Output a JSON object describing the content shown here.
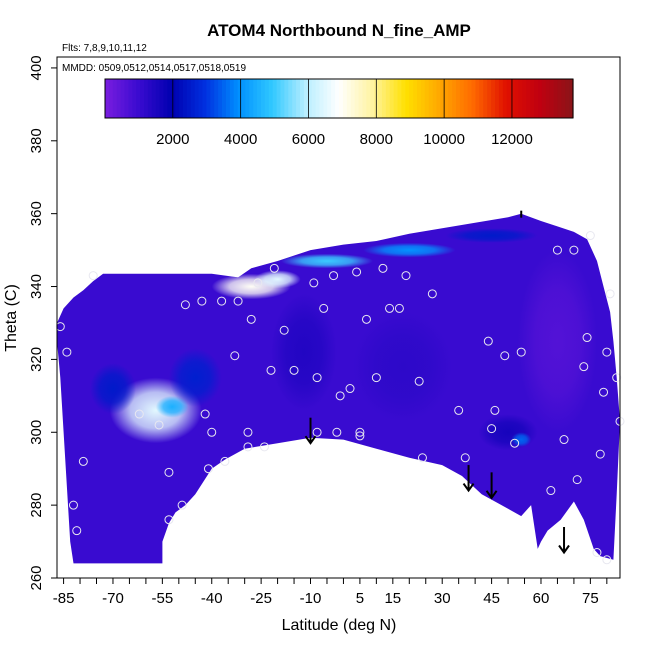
{
  "chart_data": {
    "type": "heatmap",
    "title": "ATOM4 Northbound N_fine_AMP",
    "subtitle": "Flts: 7,8,9,10,11,12",
    "annotation": "MMDD: 0509,0512,0514,0517,0518,0519",
    "xlabel": "Latitude (deg N)",
    "ylabel": "Theta (C)",
    "xlim": [
      -87,
      84
    ],
    "ylim": [
      260,
      403
    ],
    "x_ticks": [
      "-85",
      "-70",
      "-55",
      "-40",
      "-25",
      "-10",
      "5",
      "15",
      "30",
      "45",
      "60",
      "75"
    ],
    "x_tick_values": [
      -85,
      -70,
      -55,
      -40,
      -25,
      -10,
      5,
      15,
      30,
      45,
      60,
      75
    ],
    "y_ticks": [
      "260",
      "280",
      "300",
      "320",
      "340",
      "360",
      "380",
      "400"
    ],
    "y_tick_values": [
      260,
      280,
      300,
      320,
      340,
      360,
      380,
      400
    ],
    "colorbar": {
      "ticks": [
        "2000",
        "4000",
        "6000",
        "8000",
        "10000",
        "12000"
      ],
      "tick_values": [
        2000,
        4000,
        6000,
        8000,
        10000,
        12000
      ],
      "range": [
        0,
        13800
      ],
      "colors": [
        "#7a1de0",
        "#3a0bd0",
        "#0000b0",
        "#0030e0",
        "#0090ff",
        "#30c8ff",
        "#b8eeff",
        "#ffffff",
        "#fff3a0",
        "#ffe000",
        "#ffa800",
        "#ff6a00",
        "#e01000",
        "#c00010",
        "#8a1418"
      ]
    },
    "background_value": 1000,
    "blobs": [
      {
        "lat": -57,
        "theta": 306,
        "rx": 14,
        "ry": 9,
        "value": 6500
      },
      {
        "lat": -52,
        "theta": 307,
        "rx": 5,
        "ry": 3,
        "value": 4500
      },
      {
        "lat": -70,
        "theta": 312,
        "rx": 7,
        "ry": 7,
        "value": 2500
      },
      {
        "lat": -45,
        "theta": 315,
        "rx": 8,
        "ry": 8,
        "value": 2600
      },
      {
        "lat": -28,
        "theta": 340,
        "rx": 12,
        "ry": 3.5,
        "value": 7000
      },
      {
        "lat": -20,
        "theta": 342,
        "rx": 7,
        "ry": 2.5,
        "value": 6500
      },
      {
        "lat": -5,
        "theta": 347,
        "rx": 14,
        "ry": 2,
        "value": 5000
      },
      {
        "lat": 20,
        "theta": 350,
        "rx": 14,
        "ry": 2,
        "value": 4000
      },
      {
        "lat": 45,
        "theta": 354,
        "rx": 14,
        "ry": 2,
        "value": 2500
      },
      {
        "lat": -12,
        "theta": 322,
        "rx": 10,
        "ry": 16,
        "value": 1400
      },
      {
        "lat": 18,
        "theta": 318,
        "rx": 15,
        "ry": 15,
        "value": 1200
      },
      {
        "lat": 50,
        "theta": 300,
        "rx": 9,
        "ry": 5,
        "value": 1600
      },
      {
        "lat": 54,
        "theta": 298,
        "rx": 3,
        "ry": 2,
        "value": 3500
      },
      {
        "lat": 65,
        "theta": 325,
        "rx": 12,
        "ry": 25,
        "value": 600
      }
    ],
    "outline": [
      [
        -87,
        330
      ],
      [
        -85,
        334
      ],
      [
        -82,
        337
      ],
      [
        -79,
        339
      ],
      [
        -76,
        341.5
      ],
      [
        -73,
        343.5
      ],
      [
        -60,
        343.5
      ],
      [
        -50,
        343.5
      ],
      [
        -40,
        343.5
      ],
      [
        -32,
        342.5
      ],
      [
        -28,
        345
      ],
      [
        -20,
        347
      ],
      [
        -10,
        350
      ],
      [
        0,
        351.5
      ],
      [
        10,
        352.5
      ],
      [
        20,
        354.5
      ],
      [
        30,
        356
      ],
      [
        40,
        357.5
      ],
      [
        50,
        359
      ],
      [
        54,
        360
      ],
      [
        60,
        358
      ],
      [
        65,
        356.5
      ],
      [
        70,
        355
      ],
      [
        74,
        353
      ],
      [
        77,
        347
      ],
      [
        79,
        340
      ],
      [
        81,
        333
      ],
      [
        82,
        325
      ],
      [
        83,
        315
      ],
      [
        84,
        303
      ],
      [
        83,
        283
      ],
      [
        82,
        265
      ],
      [
        78,
        266
      ],
      [
        76,
        268
      ],
      [
        73,
        276
      ],
      [
        70,
        281
      ],
      [
        66,
        276
      ],
      [
        62,
        273
      ],
      [
        60,
        270
      ],
      [
        59,
        268
      ],
      [
        57,
        280
      ],
      [
        54,
        277
      ],
      [
        48,
        280
      ],
      [
        42,
        283
      ],
      [
        36,
        288
      ],
      [
        30,
        291
      ],
      [
        20,
        293
      ],
      [
        10,
        295.5
      ],
      [
        0,
        298
      ],
      [
        -10,
        298.5
      ],
      [
        -20,
        297
      ],
      [
        -30,
        295.5
      ],
      [
        -36,
        292.5
      ],
      [
        -40,
        290
      ],
      [
        -45,
        283
      ],
      [
        -48,
        280
      ],
      [
        -51,
        278
      ],
      [
        -53,
        275
      ],
      [
        -55,
        270
      ],
      [
        -55,
        264
      ],
      [
        -82,
        264
      ],
      [
        -83,
        270
      ],
      [
        -84,
        285
      ],
      [
        -85,
        300
      ],
      [
        -86,
        315
      ],
      [
        -87,
        325
      ]
    ],
    "flight_points": [
      [
        -86,
        329
      ],
      [
        -84,
        322
      ],
      [
        -82,
        280
      ],
      [
        -81,
        273
      ],
      [
        -79,
        292
      ],
      [
        -76,
        343
      ],
      [
        -62,
        305
      ],
      [
        -56,
        302
      ],
      [
        -53,
        289
      ],
      [
        -53,
        276
      ],
      [
        -49,
        280
      ],
      [
        -48,
        335
      ],
      [
        -43,
        336
      ],
      [
        -42,
        305
      ],
      [
        -41,
        290
      ],
      [
        -40,
        300
      ],
      [
        -37,
        336
      ],
      [
        -36,
        292
      ],
      [
        -33,
        321
      ],
      [
        -32,
        336
      ],
      [
        -29,
        300
      ],
      [
        -29,
        296
      ],
      [
        -28,
        331
      ],
      [
        -26,
        341
      ],
      [
        -24,
        296
      ],
      [
        -22,
        317
      ],
      [
        -21,
        345
      ],
      [
        -18,
        328
      ],
      [
        -15,
        317
      ],
      [
        -9,
        341
      ],
      [
        -8,
        315
      ],
      [
        -8,
        300
      ],
      [
        -6,
        334
      ],
      [
        -3,
        343
      ],
      [
        -2,
        300
      ],
      [
        -1,
        310
      ],
      [
        2,
        312
      ],
      [
        4,
        344
      ],
      [
        5,
        300
      ],
      [
        5,
        299
      ],
      [
        7,
        331
      ],
      [
        10,
        315
      ],
      [
        12,
        345
      ],
      [
        14,
        334
      ],
      [
        17,
        334
      ],
      [
        19,
        343
      ],
      [
        23,
        314
      ],
      [
        24,
        293
      ],
      [
        27,
        338
      ],
      [
        35,
        306
      ],
      [
        37,
        293
      ],
      [
        44,
        325
      ],
      [
        45,
        301
      ],
      [
        46,
        306
      ],
      [
        49,
        321
      ],
      [
        52,
        297
      ],
      [
        54,
        322
      ],
      [
        63,
        284
      ],
      [
        65,
        350
      ],
      [
        67,
        298
      ],
      [
        70,
        350
      ],
      [
        71,
        287
      ],
      [
        73,
        318
      ],
      [
        74,
        326
      ],
      [
        75,
        354
      ],
      [
        77,
        267
      ],
      [
        78,
        294
      ],
      [
        79,
        311
      ],
      [
        80,
        322
      ],
      [
        80,
        265
      ],
      [
        81,
        338
      ],
      [
        83,
        315
      ],
      [
        84,
        303
      ]
    ],
    "arrows": [
      {
        "lat": -10,
        "theta_from": 304,
        "theta_to": 297
      },
      {
        "lat": 38,
        "theta_from": 291,
        "theta_to": 284
      },
      {
        "lat": 45,
        "theta_from": 289,
        "theta_to": 282
      },
      {
        "lat": 67,
        "theta_from": 274,
        "theta_to": 267
      }
    ],
    "marker": {
      "lat": 54,
      "theta": 360
    }
  }
}
